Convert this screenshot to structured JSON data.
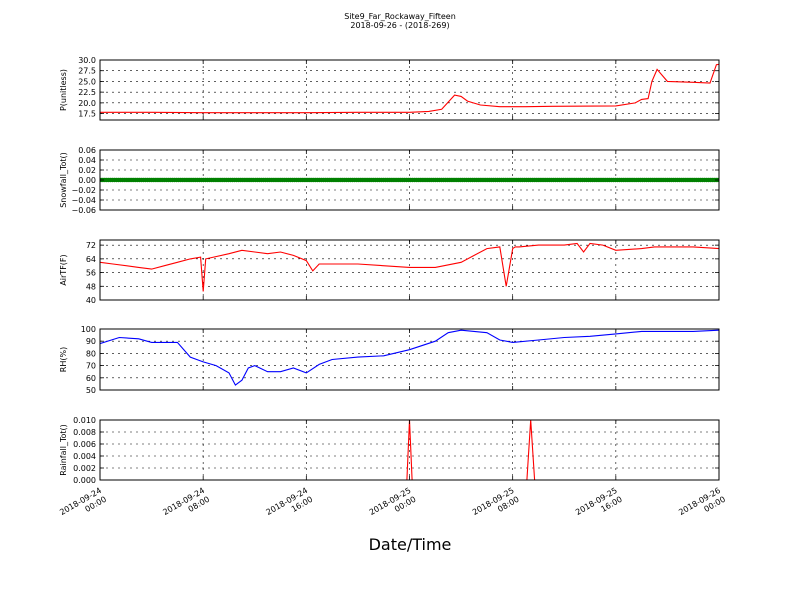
{
  "figure": {
    "title": "Site9_Far_Rockaway_Fifteen",
    "subtitle": "2018-09-26 - (2018-269)",
    "xlabel": "Date/Time"
  },
  "chart_data": {
    "type": "line",
    "x_ticks": [
      {
        "value": 0,
        "label": [
          "2018-09-24",
          "00:00"
        ]
      },
      {
        "value": 8,
        "label": [
          "2018-09-24",
          "08:00"
        ]
      },
      {
        "value": 16,
        "label": [
          "2018-09-24",
          "16:00"
        ]
      },
      {
        "value": 24,
        "label": [
          "2018-09-25",
          "00:00"
        ]
      },
      {
        "value": 32,
        "label": [
          "2018-09-25",
          "08:00"
        ]
      },
      {
        "value": 40,
        "label": [
          "2018-09-25",
          "16:00"
        ]
      },
      {
        "value": 48,
        "label": [
          "2018-09-26",
          "00:00"
        ]
      }
    ],
    "x_range": [
      0,
      48
    ],
    "grid": true,
    "panels": [
      {
        "ylabel": "P(unitless)",
        "ylim": [
          16,
          30
        ],
        "yticks": [
          17.5,
          20.0,
          22.5,
          25.0,
          27.5,
          30.0
        ],
        "ytick_labels": [
          "17.5",
          "20.0",
          "22.5",
          "25.0",
          "27.5",
          "30.0"
        ],
        "color": "#ff0000",
        "x": [
          0,
          4,
          8,
          12,
          16,
          20,
          24,
          25.5,
          26.5,
          27.5,
          28,
          28.5,
          29.5,
          31,
          33,
          35,
          40,
          41.5,
          42,
          42.5,
          42.8,
          43.2,
          44,
          46,
          47.3,
          47.8,
          48
        ],
        "y": [
          17.8,
          17.8,
          17.7,
          17.7,
          17.7,
          17.8,
          17.8,
          18.0,
          18.5,
          21.8,
          21.5,
          20.4,
          19.5,
          19.1,
          19.1,
          19.2,
          19.3,
          20.0,
          20.8,
          21.0,
          25.0,
          27.8,
          25.0,
          24.8,
          24.6,
          28.9,
          29.0
        ]
      },
      {
        "ylabel": "Snowfall_Tot()",
        "ylim": [
          -0.06,
          0.06
        ],
        "yticks": [
          -0.06,
          -0.04,
          -0.02,
          0.0,
          0.02,
          0.04,
          0.06
        ],
        "ytick_labels": [
          "−0.06",
          "−0.04",
          "−0.02",
          "0.00",
          "0.02",
          "0.04",
          "0.06"
        ],
        "color": "#008000",
        "marker": "dot",
        "x_start": 0,
        "x_end": 48,
        "point_count": 300,
        "y_constant": 0.0
      },
      {
        "ylabel": "AirTF(F)",
        "ylim": [
          40,
          75
        ],
        "yticks": [
          40,
          48,
          56,
          64,
          72
        ],
        "ytick_labels": [
          "40",
          "48",
          "56",
          "64",
          "72"
        ],
        "color": "#ff0000",
        "x": [
          0,
          1,
          3,
          4,
          5,
          6,
          7,
          7.8,
          8.0,
          8.2,
          10,
          11,
          12,
          13,
          14,
          15,
          16,
          16.5,
          17,
          18,
          20,
          24,
          26,
          28,
          30,
          31,
          31.5,
          32,
          32.2,
          32.5,
          34,
          36,
          37,
          37.5,
          38,
          39,
          40,
          42,
          43,
          44,
          46,
          48
        ],
        "y": [
          62,
          61,
          59,
          58,
          60,
          62,
          64,
          65,
          45,
          64,
          67,
          69,
          68,
          67,
          68,
          66,
          63,
          57,
          61,
          61,
          61,
          59,
          59,
          62,
          70,
          71,
          48,
          70,
          71,
          71,
          72,
          72,
          73,
          68,
          73,
          72,
          69,
          70,
          71,
          71,
          71,
          70
        ]
      },
      {
        "ylabel": "RH(%)",
        "ylim": [
          50,
          100
        ],
        "yticks": [
          50,
          60,
          70,
          80,
          90,
          100
        ],
        "ytick_labels": [
          "50",
          "60",
          "70",
          "80",
          "90",
          "100"
        ],
        "color": "#0000ff",
        "x": [
          0,
          1.5,
          3,
          4,
          6,
          7,
          8,
          9,
          10,
          10.5,
          11,
          11.5,
          12,
          13,
          14,
          15,
          16,
          17,
          18,
          20,
          22,
          24,
          26,
          27,
          28,
          30,
          31,
          32,
          34,
          36,
          38,
          40,
          42,
          44,
          46,
          48
        ],
        "y": [
          88,
          93,
          92,
          89,
          89,
          77,
          73,
          70,
          64,
          54,
          58,
          68,
          70,
          65,
          65,
          68,
          64,
          71,
          75,
          77,
          78,
          83,
          90,
          97,
          99,
          97,
          91,
          89,
          91,
          93,
          94,
          96,
          98,
          98,
          98,
          99
        ]
      },
      {
        "ylabel": "Rainfall_Tot()",
        "ylim": [
          0,
          0.01
        ],
        "yticks": [
          0.0,
          0.002,
          0.004,
          0.006,
          0.008,
          0.01
        ],
        "ytick_labels": [
          "0.000",
          "0.002",
          "0.004",
          "0.006",
          "0.008",
          "0.010"
        ],
        "color": "#ff0000",
        "x": [
          0,
          23.8,
          24.0,
          24.2,
          33.1,
          33.4,
          33.7,
          48
        ],
        "y": [
          0,
          0,
          0.01,
          0,
          0,
          0.01,
          0,
          0
        ]
      }
    ]
  }
}
